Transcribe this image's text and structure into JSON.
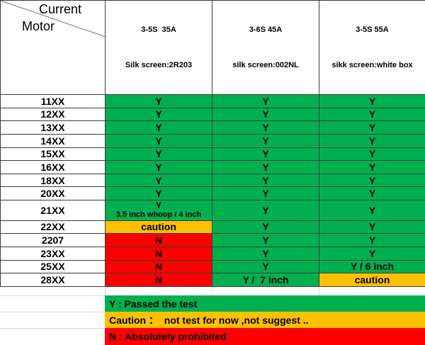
{
  "header": {
    "corner": {
      "top": "Current",
      "bottom": "Motor"
    },
    "columns": [
      {
        "line1": "3-5S  35A",
        "line2": "Silk screen:2R203"
      },
      {
        "line1": "3-6S 45A",
        "line2": "silk screen:002NL"
      },
      {
        "line1": "3-5S 55A",
        "line2": "sikk screen:white box"
      }
    ]
  },
  "table": {
    "rows": [
      {
        "label": "11XX",
        "cells": [
          {
            "text": "Y",
            "state": "green"
          },
          {
            "text": "Y",
            "state": "green"
          },
          {
            "text": "Y",
            "state": "green"
          }
        ]
      },
      {
        "label": "12XX",
        "cells": [
          {
            "text": "Y",
            "state": "green"
          },
          {
            "text": "Y",
            "state": "green"
          },
          {
            "text": "Y",
            "state": "green"
          }
        ]
      },
      {
        "label": "13XX",
        "cells": [
          {
            "text": "Y",
            "state": "green"
          },
          {
            "text": "Y",
            "state": "green"
          },
          {
            "text": "Y",
            "state": "green"
          }
        ]
      },
      {
        "label": "14XX",
        "cells": [
          {
            "text": "Y",
            "state": "green"
          },
          {
            "text": "Y",
            "state": "green"
          },
          {
            "text": "Y",
            "state": "green"
          }
        ]
      },
      {
        "label": "15XX",
        "cells": [
          {
            "text": "Y",
            "state": "green"
          },
          {
            "text": "Y",
            "state": "green"
          },
          {
            "text": "Y",
            "state": "green"
          }
        ]
      },
      {
        "label": "16XX",
        "cells": [
          {
            "text": "Y",
            "state": "green"
          },
          {
            "text": "Y",
            "state": "green"
          },
          {
            "text": "Y",
            "state": "green"
          }
        ]
      },
      {
        "label": "18XX",
        "cells": [
          {
            "text": "Y",
            "state": "green"
          },
          {
            "text": "Y",
            "state": "green"
          },
          {
            "text": "Y",
            "state": "green"
          }
        ]
      },
      {
        "label": "20XX",
        "cells": [
          {
            "text": "Y",
            "state": "green"
          },
          {
            "text": "Y",
            "state": "green"
          },
          {
            "text": "Y",
            "state": "green"
          }
        ]
      },
      {
        "label": "21XX",
        "cells": [
          {
            "text": "Y",
            "sub": "3.5 inch whoop / 4 inch",
            "state": "green"
          },
          {
            "text": "Y",
            "state": "green"
          },
          {
            "text": "Y",
            "state": "green"
          }
        ]
      },
      {
        "label": "22XX",
        "cells": [
          {
            "text": "caution",
            "state": "yellow"
          },
          {
            "text": "Y",
            "state": "green"
          },
          {
            "text": "Y",
            "state": "green"
          }
        ]
      },
      {
        "label": "2207",
        "cells": [
          {
            "text": "N",
            "state": "red"
          },
          {
            "text": "Y",
            "state": "green"
          },
          {
            "text": "Y",
            "state": "green"
          }
        ]
      },
      {
        "label": "23XX",
        "cells": [
          {
            "text": "N",
            "state": "red"
          },
          {
            "text": "Y",
            "state": "green"
          },
          {
            "text": "Y",
            "state": "green"
          }
        ]
      },
      {
        "label": "25XX",
        "cells": [
          {
            "text": "N",
            "state": "red"
          },
          {
            "text": "Y",
            "state": "green"
          },
          {
            "text": "Y / 6 inch",
            "state": "green"
          }
        ]
      },
      {
        "label": "28XX",
        "cells": [
          {
            "text": "N",
            "state": "red"
          },
          {
            "text": "Y /  7 inch",
            "state": "green"
          },
          {
            "text": "caution",
            "state": "yellow"
          }
        ]
      }
    ]
  },
  "legend": [
    {
      "text": "Y : Passed the test",
      "state": "green"
    },
    {
      "text": "Caution ：  not test for now ,not suggest ..",
      "state": "yellow"
    },
    {
      "text": "N : Absolutely prohibited",
      "state": "red"
    }
  ],
  "colors": {
    "green": "#00B050",
    "yellow": "#FFC000",
    "red": "#FF0000",
    "border": "#3b3b3b",
    "gridline": "#d9d9d9"
  }
}
